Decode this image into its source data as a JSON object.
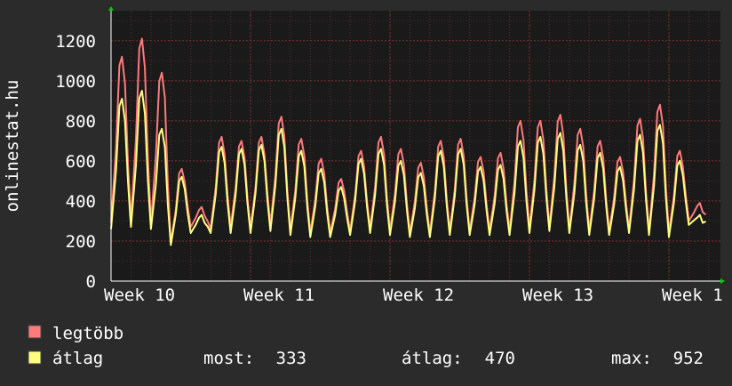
{
  "chart_data": {
    "type": "line",
    "ylabel": "onlinestat.hu",
    "ylim": [
      0,
      1350
    ],
    "yticks": [
      0,
      200,
      400,
      600,
      800,
      1000,
      1200
    ],
    "xlim": [
      0,
      4.42
    ],
    "xticks": [
      {
        "label": "Week 10",
        "x": 0
      },
      {
        "label": "Week 11",
        "x": 1
      },
      {
        "label": "Week 12",
        "x": 2
      },
      {
        "label": "Week 13",
        "x": 3
      },
      {
        "label": "Week 1",
        "x": 4
      }
    ],
    "grid": true,
    "series": [
      {
        "name": "legtöbb",
        "color": "#ff7a7a",
        "points_per_day": 4,
        "day_peaks": [
          1120,
          1210,
          1040,
          560,
          370,
          720,
          700,
          720,
          820,
          710,
          610,
          510,
          650,
          720,
          660,
          590,
          700,
          710,
          620,
          640,
          800,
          800,
          830,
          760,
          700,
          620,
          810,
          880,
          650,
          390
        ],
        "day_troughs": [
          290,
          300,
          290,
          190,
          270,
          260,
          270,
          260,
          280,
          250,
          240,
          240,
          250,
          260,
          250,
          240,
          240,
          250,
          250,
          250,
          250,
          260,
          270,
          260,
          250,
          250,
          260,
          250,
          240,
          300
        ]
      },
      {
        "name": "átlag",
        "color": "#ffff80",
        "points_per_day": 4,
        "day_peaks": [
          910,
          950,
          760,
          520,
          330,
          670,
          660,
          680,
          760,
          650,
          560,
          470,
          610,
          660,
          600,
          540,
          650,
          660,
          570,
          580,
          700,
          720,
          740,
          680,
          640,
          570,
          730,
          780,
          600,
          330
        ],
        "day_troughs": [
          260,
          270,
          260,
          180,
          240,
          240,
          240,
          240,
          250,
          230,
          220,
          220,
          230,
          240,
          230,
          220,
          220,
          230,
          230,
          230,
          230,
          240,
          250,
          240,
          230,
          230,
          240,
          230,
          220,
          280
        ]
      }
    ]
  },
  "legend": {
    "max_label": "legtöbb",
    "avg_label": "átlag",
    "stats": [
      {
        "label": "most:",
        "value": "333"
      },
      {
        "label": "átlag:",
        "value": "470"
      },
      {
        "label": "max:",
        "value": "952"
      }
    ]
  }
}
